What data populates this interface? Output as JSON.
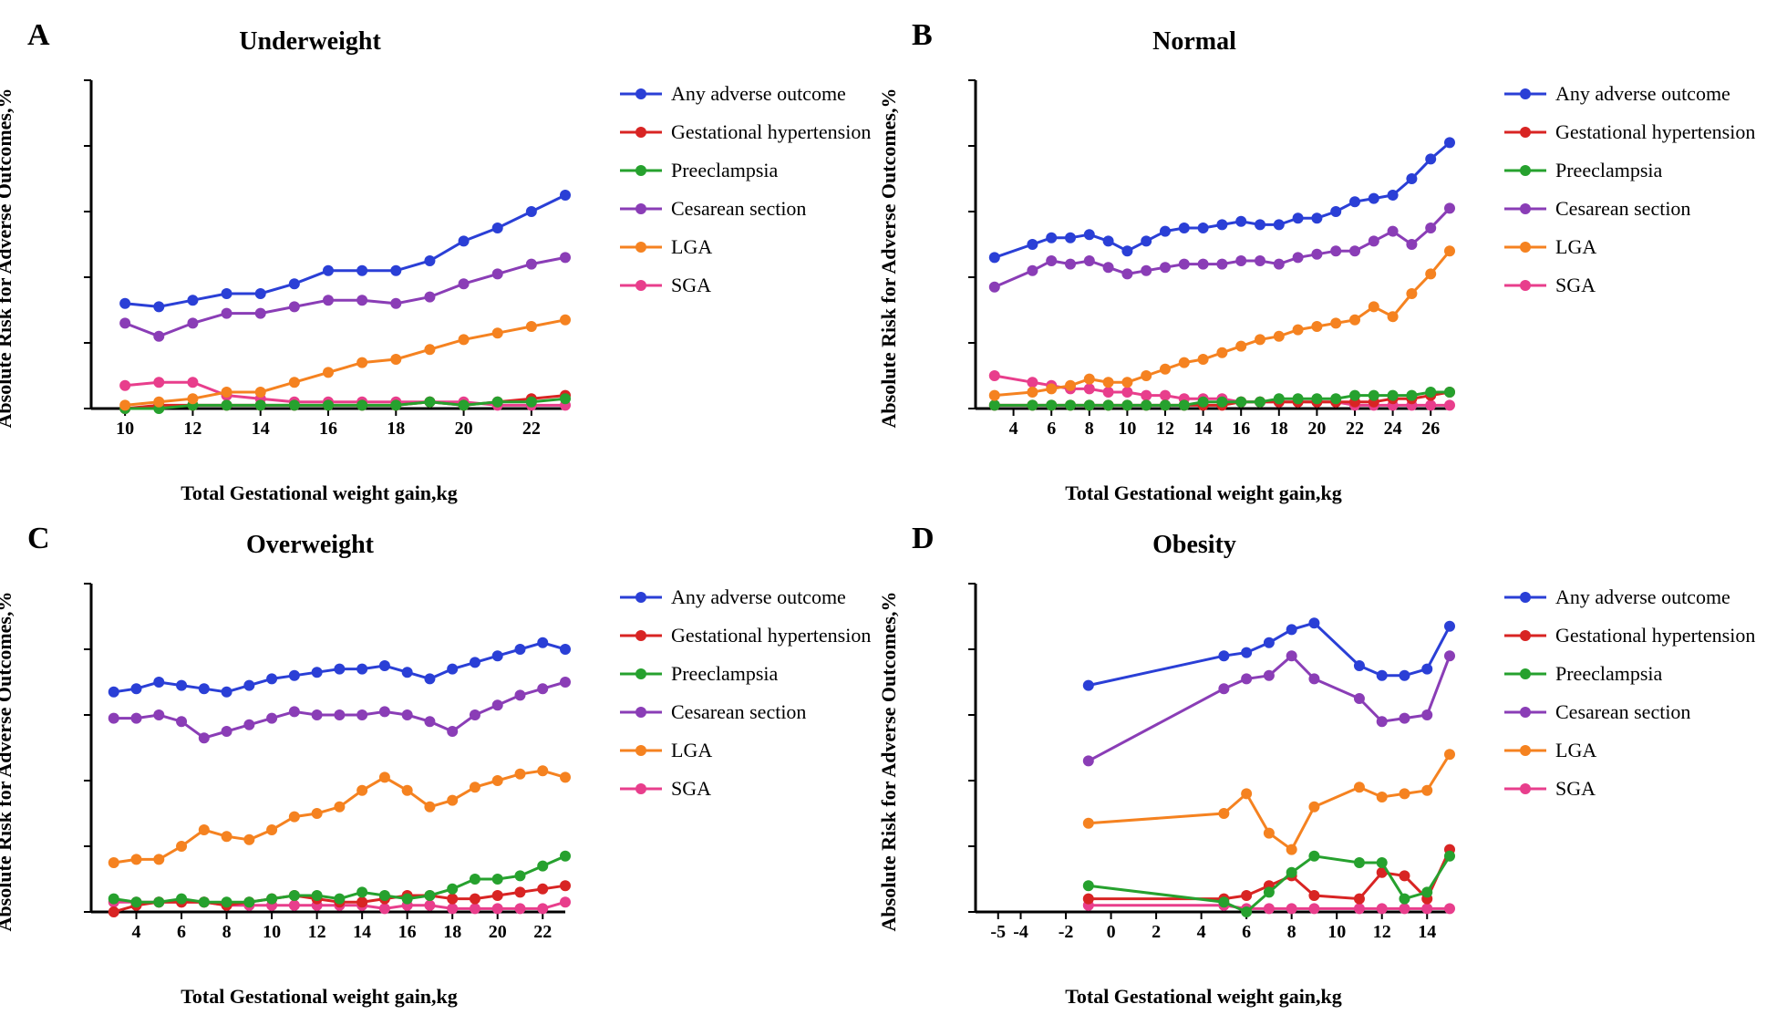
{
  "colors": {
    "any": "#2a3fd6",
    "ghtn": "#d82423",
    "pree": "#26a12e",
    "csec": "#8a3db6",
    "lga": "#f58220",
    "sga": "#e83e8c",
    "axis": "#000000",
    "bg": "#ffffff"
  },
  "legend": {
    "any": "Any adverse outcome",
    "ghtn": "Gestational hypertension",
    "pree": "Preeclampsia",
    "csec": "Cesarean section",
    "lga": "LGA",
    "sga": "SGA",
    "order": [
      "any",
      "ghtn",
      "pree",
      "csec",
      "lga",
      "sga"
    ]
  },
  "common": {
    "ylabel": "Absolute Risk for Adverse Outcomes,%",
    "xlabel": "Total Gestational weight gain,kg",
    "ylim": [
      0,
      100
    ],
    "ytick_step": 20,
    "tick_fontsize": 20,
    "label_fontsize": 22,
    "title_fontsize": 28,
    "letter_fontsize": 34,
    "marker_radius": 6,
    "line_width": 3,
    "axis_width": 3,
    "plot_inner_w": 520,
    "plot_inner_h": 360
  },
  "panels": {
    "A": {
      "letter": "A",
      "title": "Underweight",
      "x_ticks": [
        10,
        12,
        14,
        16,
        18,
        20,
        22
      ],
      "x": [
        10,
        11,
        12,
        13,
        14,
        15,
        16,
        17,
        18,
        19,
        20,
        21,
        22,
        23
      ],
      "xlim": [
        9,
        23
      ],
      "series": {
        "any": [
          32,
          31,
          33,
          35,
          35,
          38,
          42,
          42,
          42,
          45,
          51,
          55,
          60,
          65
        ],
        "csec": [
          26,
          22,
          26,
          29,
          29,
          31,
          33,
          33,
          32,
          34,
          38,
          41,
          44,
          46
        ],
        "lga": [
          1,
          2,
          3,
          5,
          5,
          8,
          11,
          14,
          15,
          18,
          21,
          23,
          25,
          27
        ],
        "sga": [
          7,
          8,
          8,
          4,
          3,
          2,
          2,
          2,
          2,
          2,
          2,
          1,
          1,
          1
        ],
        "ghtn": [
          0,
          1,
          1,
          1,
          1,
          1,
          1,
          1,
          1,
          2,
          1,
          2,
          3,
          4
        ],
        "pree": [
          0,
          0,
          1,
          1,
          1,
          1,
          1,
          1,
          1,
          2,
          1,
          2,
          2,
          3
        ]
      }
    },
    "B": {
      "letter": "B",
      "title": "Normal",
      "x_ticks": [
        4,
        6,
        8,
        10,
        12,
        14,
        16,
        18,
        20,
        22,
        24,
        26
      ],
      "x": [
        3,
        5,
        6,
        7,
        8,
        9,
        10,
        11,
        12,
        13,
        14,
        15,
        16,
        17,
        18,
        19,
        20,
        21,
        22,
        23,
        24,
        25,
        26,
        27
      ],
      "xlim": [
        2,
        27
      ],
      "series": {
        "any": [
          46,
          50,
          52,
          52,
          53,
          51,
          48,
          51,
          54,
          55,
          55,
          56,
          57,
          56,
          56,
          58,
          58,
          60,
          63,
          64,
          65,
          70,
          76,
          81
        ],
        "csec": [
          37,
          42,
          45,
          44,
          45,
          43,
          41,
          42,
          43,
          44,
          44,
          44,
          45,
          45,
          44,
          46,
          47,
          48,
          48,
          51,
          54,
          50,
          55,
          61
        ],
        "lga": [
          4,
          5,
          6,
          7,
          9,
          8,
          8,
          10,
          12,
          14,
          15,
          17,
          19,
          21,
          22,
          24,
          25,
          26,
          27,
          31,
          28,
          35,
          41,
          48
        ],
        "sga": [
          10,
          8,
          7,
          6,
          6,
          5,
          5,
          4,
          4,
          3,
          3,
          3,
          2,
          2,
          2,
          2,
          2,
          2,
          1,
          1,
          1,
          1,
          1,
          1
        ],
        "ghtn": [
          1,
          1,
          1,
          1,
          1,
          1,
          1,
          1,
          1,
          1,
          1,
          1,
          2,
          2,
          2,
          2,
          2,
          2,
          2,
          2,
          3,
          3,
          4,
          5
        ],
        "pree": [
          1,
          1,
          1,
          1,
          1,
          1,
          1,
          1,
          1,
          1,
          2,
          2,
          2,
          2,
          3,
          3,
          3,
          3,
          4,
          4,
          4,
          4,
          5,
          5
        ]
      }
    },
    "C": {
      "letter": "C",
      "title": "Overweight",
      "x_ticks": [
        4,
        6,
        8,
        10,
        12,
        14,
        16,
        18,
        20,
        22
      ],
      "x": [
        3,
        4,
        5,
        6,
        7,
        8,
        9,
        10,
        11,
        12,
        13,
        14,
        15,
        16,
        17,
        18,
        19,
        20,
        21,
        22,
        23
      ],
      "xlim": [
        2,
        23
      ],
      "series": {
        "any": [
          67,
          68,
          70,
          69,
          68,
          67,
          69,
          71,
          72,
          73,
          74,
          74,
          75,
          73,
          71,
          74,
          76,
          78,
          80,
          82,
          80
        ],
        "csec": [
          59,
          59,
          60,
          58,
          53,
          55,
          57,
          59,
          61,
          60,
          60,
          60,
          61,
          60,
          58,
          55,
          60,
          63,
          66,
          68,
          70
        ],
        "lga": [
          15,
          16,
          16,
          20,
          25,
          23,
          22,
          25,
          29,
          30,
          32,
          37,
          41,
          37,
          32,
          34,
          38,
          40,
          42,
          43,
          41
        ],
        "sga": [
          3,
          3,
          3,
          3,
          3,
          2,
          2,
          2,
          2,
          2,
          2,
          2,
          1,
          2,
          2,
          1,
          1,
          1,
          1,
          1,
          3
        ],
        "ghtn": [
          0,
          2,
          3,
          3,
          3,
          2,
          3,
          4,
          5,
          4,
          3,
          3,
          4,
          5,
          5,
          4,
          4,
          5,
          6,
          7,
          8
        ],
        "pree": [
          4,
          3,
          3,
          4,
          3,
          3,
          3,
          4,
          5,
          5,
          4,
          6,
          5,
          4,
          5,
          7,
          10,
          10,
          11,
          14,
          17
        ]
      }
    },
    "D": {
      "letter": "D",
      "title": "Obesity",
      "x_ticks": [
        -5,
        -4,
        -2,
        0,
        2,
        4,
        6,
        8,
        10,
        12,
        14
      ],
      "x": [
        -1,
        5,
        6,
        7,
        8,
        9,
        11,
        12,
        13,
        14,
        15
      ],
      "xlim": [
        -6,
        15
      ],
      "series": {
        "any": [
          69,
          78,
          79,
          82,
          86,
          88,
          75,
          72,
          72,
          74,
          87
        ],
        "csec": [
          46,
          68,
          71,
          72,
          78,
          71,
          65,
          58,
          59,
          60,
          78
        ],
        "lga": [
          27,
          30,
          36,
          24,
          19,
          32,
          38,
          35,
          36,
          37,
          48
        ],
        "sga": [
          2,
          2,
          1,
          1,
          1,
          1,
          1,
          1,
          1,
          1,
          1
        ],
        "ghtn": [
          4,
          4,
          5,
          8,
          11,
          5,
          4,
          12,
          11,
          4,
          19
        ],
        "pree": [
          8,
          3,
          0,
          6,
          12,
          17,
          15,
          15,
          4,
          6,
          17
        ]
      }
    }
  }
}
